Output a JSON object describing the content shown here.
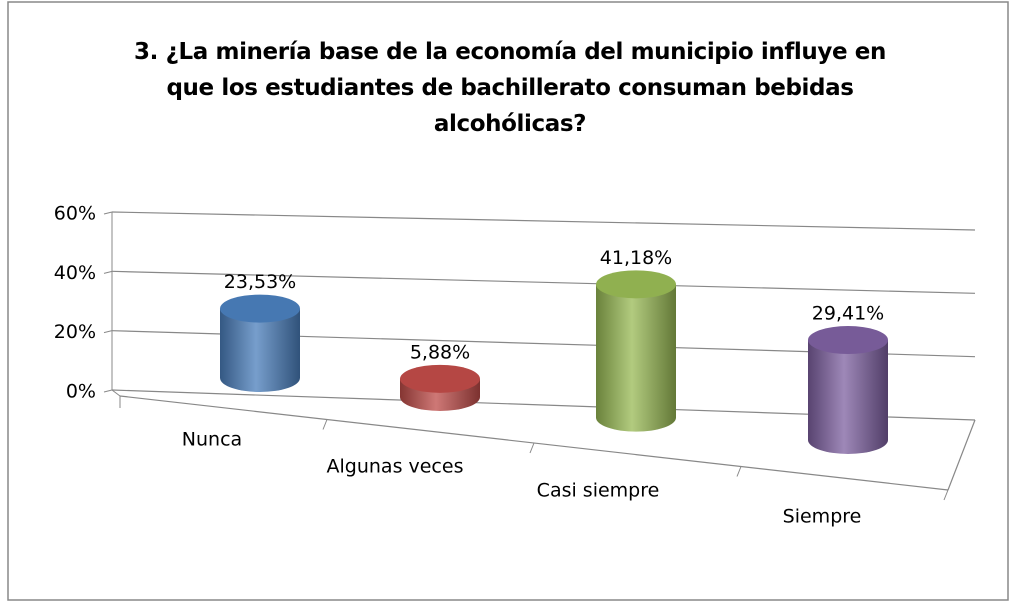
{
  "chart_data": {
    "type": "bar3d",
    "title": "3. ¿La minería base de la economía del municipio influye en que los estudiantes de bachillerato consuman bebidas alcohólicas?",
    "categories": [
      "Nunca",
      "Algunas veces",
      "Casi siempre",
      "Siempre"
    ],
    "values": [
      23.53,
      5.88,
      41.18,
      29.41
    ],
    "value_labels": [
      "23,53%",
      "5,88%",
      "41,18%",
      "29,41%"
    ],
    "colors": [
      "#4a7ebb",
      "#be4b48",
      "#98b954",
      "#7d60a0"
    ],
    "ylim": [
      0,
      60
    ],
    "yticks": [
      {
        "value": 0,
        "label": "0%"
      },
      {
        "value": 20,
        "label": "20%"
      },
      {
        "value": 40,
        "label": "40%"
      },
      {
        "value": 60,
        "label": "60%"
      }
    ],
    "grid": true
  }
}
